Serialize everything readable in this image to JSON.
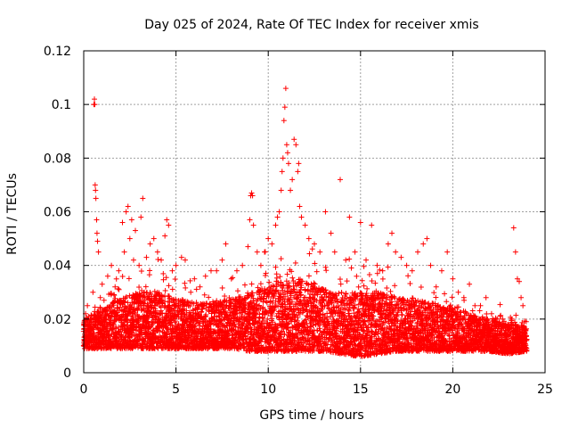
{
  "chart_data": {
    "type": "scatter",
    "title": "Day 025 of 2024, Rate Of TEC Index for receiver xmis",
    "xlabel": "GPS time / hours",
    "ylabel": "ROTI / TECUs",
    "xlim": [
      0,
      25
    ],
    "ylim": [
      0,
      0.12
    ],
    "xticks": [
      0,
      5,
      10,
      15,
      20,
      25
    ],
    "yticks": [
      0,
      0.02,
      0.04,
      0.06,
      0.08,
      0.1,
      0.12
    ],
    "xtick_labels": [
      "0",
      "5",
      "10",
      "15",
      "20",
      "25"
    ],
    "ytick_labels": [
      "0",
      "0.02",
      "0.04",
      "0.06",
      "0.08",
      "0.1",
      "0.12"
    ],
    "grid": true,
    "marker": "+",
    "marker_color": "#ff0000",
    "series": [
      {
        "points": [
          [
            0.05,
            0.018
          ],
          [
            0.1,
            0.022
          ],
          [
            0.15,
            0.012
          ],
          [
            0.2,
            0.025
          ],
          [
            0.3,
            0.015
          ],
          [
            0.4,
            0.02
          ],
          [
            0.5,
            0.03
          ],
          [
            0.55,
            0.1
          ],
          [
            0.58,
            0.102
          ],
          [
            0.6,
            0.1
          ],
          [
            0.62,
            0.07
          ],
          [
            0.64,
            0.068
          ],
          [
            0.66,
            0.065
          ],
          [
            0.7,
            0.057
          ],
          [
            0.72,
            0.052
          ],
          [
            0.75,
            0.049
          ],
          [
            0.8,
            0.045
          ],
          [
            0.9,
            0.028
          ],
          [
            1.0,
            0.033
          ],
          [
            1.1,
            0.027
          ],
          [
            1.3,
            0.036
          ],
          [
            1.5,
            0.04
          ],
          [
            1.7,
            0.032
          ],
          [
            1.9,
            0.038
          ],
          [
            2.1,
            0.056
          ],
          [
            2.2,
            0.045
          ],
          [
            2.3,
            0.06
          ],
          [
            2.4,
            0.062
          ],
          [
            2.5,
            0.05
          ],
          [
            2.6,
            0.057
          ],
          [
            2.7,
            0.042
          ],
          [
            2.8,
            0.053
          ],
          [
            3.0,
            0.04
          ],
          [
            3.1,
            0.058
          ],
          [
            3.2,
            0.065
          ],
          [
            3.4,
            0.043
          ],
          [
            3.6,
            0.048
          ],
          [
            3.8,
            0.05
          ],
          [
            4.0,
            0.045
          ],
          [
            4.2,
            0.042
          ],
          [
            4.4,
            0.051
          ],
          [
            4.5,
            0.057
          ],
          [
            4.6,
            0.055
          ],
          [
            4.8,
            0.038
          ],
          [
            5.0,
            0.04
          ],
          [
            5.3,
            0.043
          ],
          [
            5.5,
            0.042
          ],
          [
            5.8,
            0.03
          ],
          [
            6.0,
            0.035
          ],
          [
            6.3,
            0.032
          ],
          [
            6.6,
            0.036
          ],
          [
            6.9,
            0.038
          ],
          [
            7.2,
            0.038
          ],
          [
            7.5,
            0.042
          ],
          [
            7.7,
            0.048
          ],
          [
            8.0,
            0.035
          ],
          [
            8.3,
            0.038
          ],
          [
            8.6,
            0.04
          ],
          [
            8.9,
            0.047
          ],
          [
            9.0,
            0.057
          ],
          [
            9.05,
            0.066
          ],
          [
            9.1,
            0.067
          ],
          [
            9.15,
            0.066
          ],
          [
            9.2,
            0.055
          ],
          [
            9.4,
            0.045
          ],
          [
            9.6,
            0.04
          ],
          [
            9.8,
            0.045
          ],
          [
            10.0,
            0.05
          ],
          [
            10.2,
            0.048
          ],
          [
            10.4,
            0.055
          ],
          [
            10.5,
            0.058
          ],
          [
            10.6,
            0.06
          ],
          [
            10.7,
            0.068
          ],
          [
            10.75,
            0.075
          ],
          [
            10.8,
            0.08
          ],
          [
            10.85,
            0.094
          ],
          [
            10.9,
            0.099
          ],
          [
            10.95,
            0.106
          ],
          [
            11.0,
            0.085
          ],
          [
            11.05,
            0.082
          ],
          [
            11.1,
            0.078
          ],
          [
            11.2,
            0.068
          ],
          [
            11.3,
            0.072
          ],
          [
            11.4,
            0.087
          ],
          [
            11.5,
            0.085
          ],
          [
            11.6,
            0.075
          ],
          [
            11.65,
            0.078
          ],
          [
            11.7,
            0.062
          ],
          [
            11.8,
            0.058
          ],
          [
            12.0,
            0.055
          ],
          [
            12.2,
            0.05
          ],
          [
            12.5,
            0.048
          ],
          [
            12.8,
            0.045
          ],
          [
            13.1,
            0.06
          ],
          [
            13.4,
            0.052
          ],
          [
            13.6,
            0.045
          ],
          [
            13.9,
            0.072
          ],
          [
            14.2,
            0.042
          ],
          [
            14.4,
            0.058
          ],
          [
            14.7,
            0.045
          ],
          [
            15.0,
            0.056
          ],
          [
            15.3,
            0.042
          ],
          [
            15.6,
            0.055
          ],
          [
            15.9,
            0.04
          ],
          [
            16.2,
            0.038
          ],
          [
            16.5,
            0.048
          ],
          [
            16.7,
            0.052
          ],
          [
            16.9,
            0.045
          ],
          [
            17.2,
            0.043
          ],
          [
            17.5,
            0.04
          ],
          [
            17.8,
            0.038
          ],
          [
            18.1,
            0.045
          ],
          [
            18.4,
            0.048
          ],
          [
            18.6,
            0.05
          ],
          [
            18.8,
            0.04
          ],
          [
            19.1,
            0.032
          ],
          [
            19.4,
            0.038
          ],
          [
            19.7,
            0.045
          ],
          [
            20.0,
            0.035
          ],
          [
            20.3,
            0.03
          ],
          [
            20.6,
            0.028
          ],
          [
            20.9,
            0.033
          ],
          [
            21.2,
            0.025
          ],
          [
            21.5,
            0.025
          ],
          [
            21.8,
            0.028
          ],
          [
            22.1,
            0.022
          ],
          [
            22.4,
            0.02
          ],
          [
            22.7,
            0.02
          ],
          [
            23.0,
            0.018
          ],
          [
            23.2,
            0.02
          ],
          [
            23.3,
            0.054
          ],
          [
            23.4,
            0.045
          ],
          [
            23.5,
            0.035
          ],
          [
            23.6,
            0.034
          ],
          [
            23.7,
            0.028
          ],
          [
            23.8,
            0.025
          ],
          [
            23.9,
            0.015
          ],
          [
            24.0,
            0.012
          ]
        ]
      }
    ],
    "dense_band": {
      "step_hours": 0.025,
      "baseline": [
        [
          0,
          0.009,
          0.02
        ],
        [
          1,
          0.009,
          0.024
        ],
        [
          2,
          0.009,
          0.028
        ],
        [
          3,
          0.009,
          0.03
        ],
        [
          4,
          0.009,
          0.03
        ],
        [
          5,
          0.009,
          0.028
        ],
        [
          6,
          0.009,
          0.026
        ],
        [
          7,
          0.009,
          0.026
        ],
        [
          8,
          0.009,
          0.028
        ],
        [
          9,
          0.008,
          0.03
        ],
        [
          10,
          0.008,
          0.032
        ],
        [
          11,
          0.008,
          0.035
        ],
        [
          12,
          0.008,
          0.035
        ],
        [
          13,
          0.008,
          0.032
        ],
        [
          14,
          0.007,
          0.03
        ],
        [
          15,
          0.006,
          0.03
        ],
        [
          16,
          0.007,
          0.03
        ],
        [
          17,
          0.008,
          0.028
        ],
        [
          18,
          0.008,
          0.028
        ],
        [
          19,
          0.008,
          0.026
        ],
        [
          20,
          0.008,
          0.024
        ],
        [
          21,
          0.008,
          0.022
        ],
        [
          22,
          0.008,
          0.02
        ],
        [
          23,
          0.007,
          0.018
        ],
        [
          24,
          0.008,
          0.018
        ]
      ]
    }
  }
}
